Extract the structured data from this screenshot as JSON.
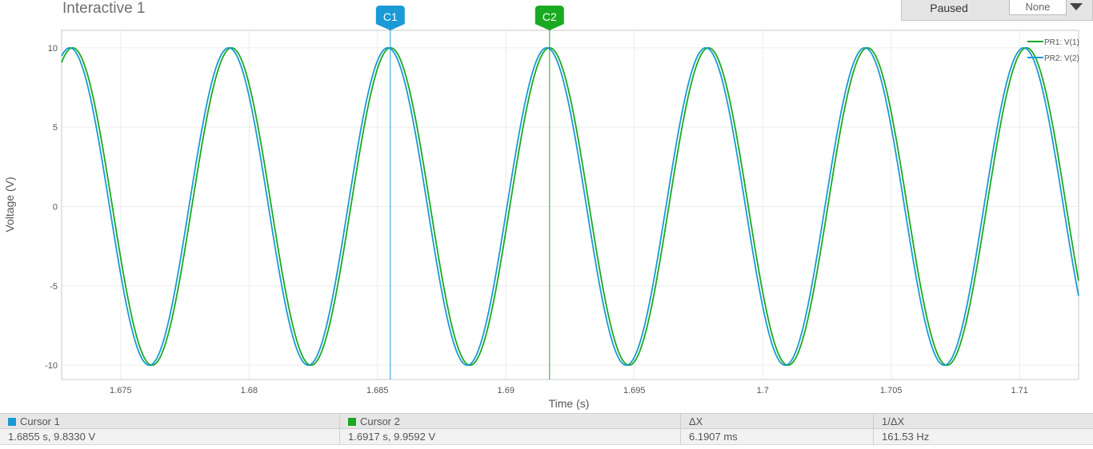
{
  "window": {
    "title": "Interactive 1"
  },
  "controls": {
    "status": "Paused",
    "select_value": "None"
  },
  "cursors": {
    "c1": {
      "label": "C1",
      "color": "#1a9ad6",
      "x": 1.6855
    },
    "c2": {
      "label": "C2",
      "color": "#1aaa22",
      "x": 1.6917
    }
  },
  "legend": [
    {
      "name": "PR1: V(1)",
      "color": "#1aaa22"
    },
    {
      "name": "PR2: V(2)",
      "color": "#1a9ad6"
    }
  ],
  "footer": {
    "headers": [
      "Cursor 1",
      "Cursor 2",
      "ΔX",
      "1/ΔX"
    ],
    "values": [
      "1.6855 s, 9.8330 V",
      "1.6917 s, 9.9592 V",
      "6.1907 ms",
      "161.53 Hz"
    ]
  },
  "chart_data": {
    "type": "line",
    "xlabel": "Time (s)",
    "ylabel": "Voltage (V)",
    "xlim": [
      1.6727,
      1.7123
    ],
    "ylim": [
      -10.9,
      11.1
    ],
    "xticks": [
      {
        "v": 1.675,
        "label": "1.675"
      },
      {
        "v": 1.68,
        "label": "1.68"
      },
      {
        "v": 1.685,
        "label": "1.685"
      },
      {
        "v": 1.69,
        "label": "1.69"
      },
      {
        "v": 1.695,
        "label": "1.695"
      },
      {
        "v": 1.7,
        "label": "1.7"
      },
      {
        "v": 1.705,
        "label": "1.705"
      },
      {
        "v": 1.71,
        "label": "1.71"
      }
    ],
    "yticks": [
      {
        "v": 10,
        "label": "10"
      },
      {
        "v": 5,
        "label": "5"
      },
      {
        "v": 0,
        "label": "0"
      },
      {
        "v": -5,
        "label": "-5"
      },
      {
        "v": -10,
        "label": "-10"
      }
    ],
    "grid": true,
    "legend_position": "top-right",
    "series": [
      {
        "name": "PR1: V(1)",
        "color": "#1aaa22",
        "amplitude": 10,
        "frequency_hz": 161.53,
        "peak_time_s": 1.6917
      },
      {
        "name": "PR2: V(2)",
        "color": "#1a9ad6",
        "amplitude": 10,
        "frequency_hz": 161.53,
        "peak_time_s": 1.6854
      }
    ]
  }
}
